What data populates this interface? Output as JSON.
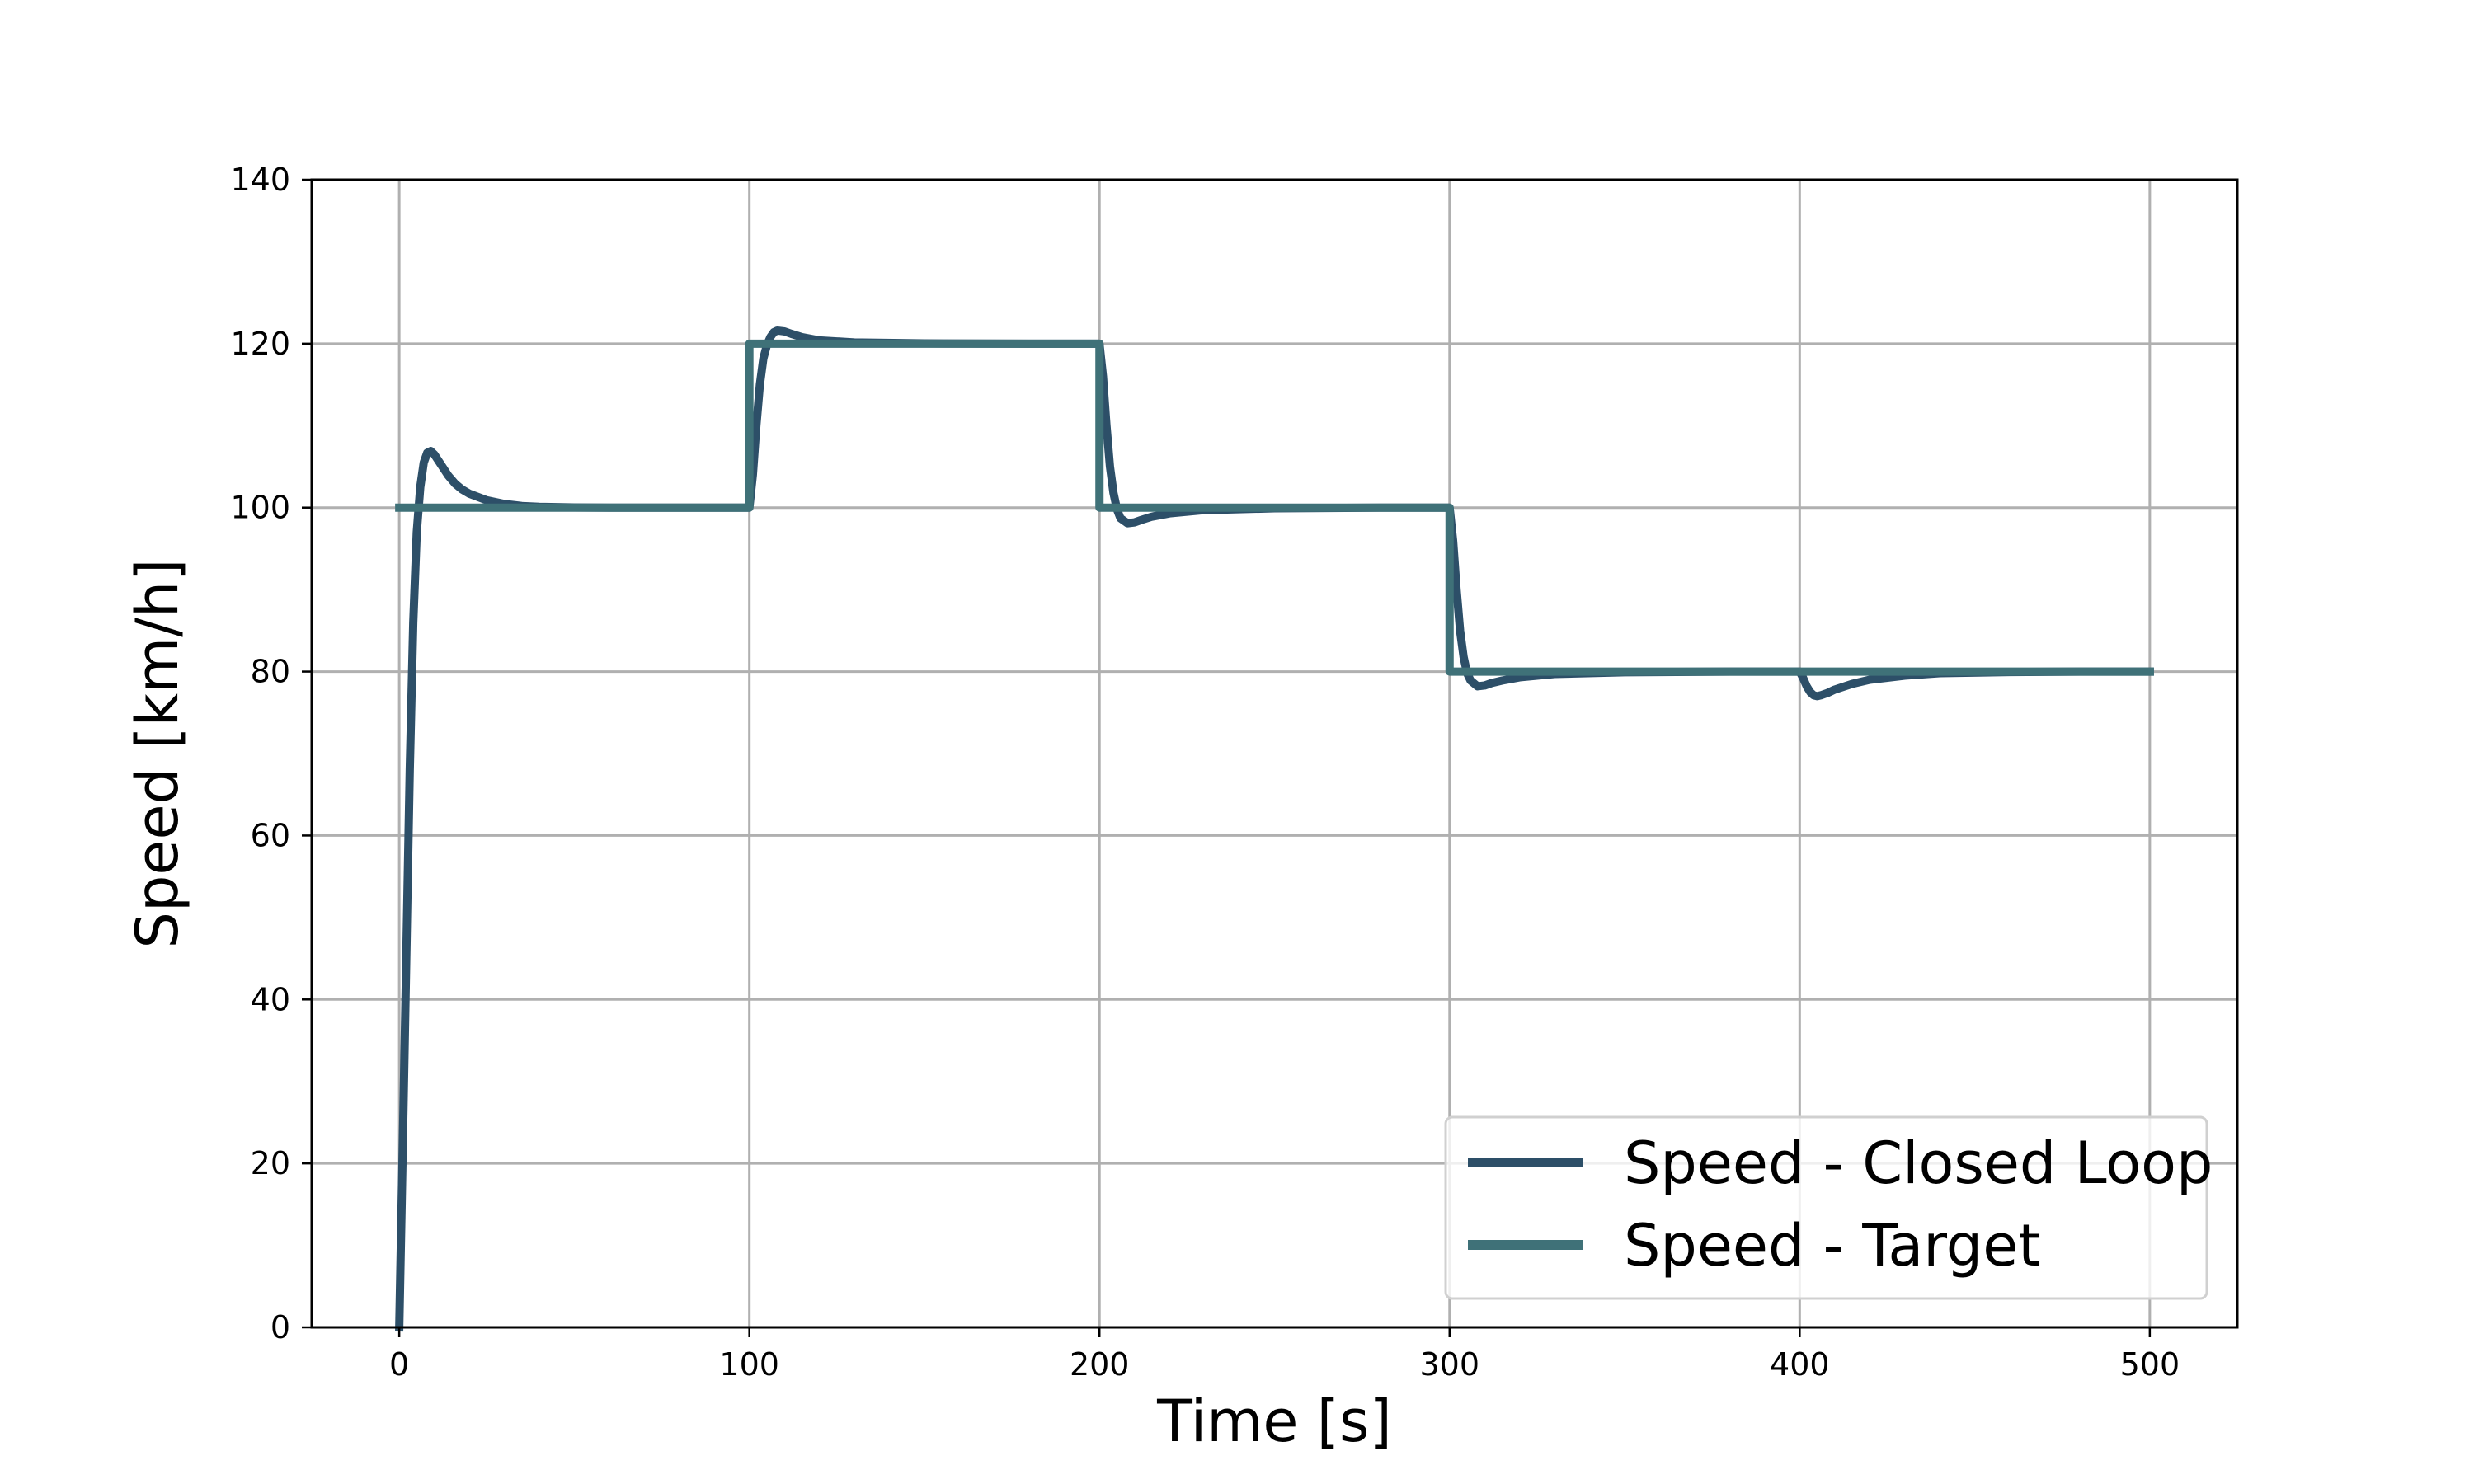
{
  "chart_data": {
    "type": "line",
    "title": "",
    "xlabel": "Time [s]",
    "ylabel": "Speed [km/h]",
    "xlim": [
      -25,
      525
    ],
    "ylim": [
      0,
      140
    ],
    "xticks": [
      0,
      100,
      200,
      300,
      400,
      500
    ],
    "yticks": [
      0,
      20,
      40,
      60,
      80,
      100,
      120,
      140
    ],
    "xtick_labels": [
      "0",
      "100",
      "200",
      "300",
      "400",
      "500"
    ],
    "ytick_labels": [
      "0",
      "20",
      "40",
      "60",
      "80",
      "100",
      "120",
      "140"
    ],
    "grid": true,
    "legend_position": "lower-right",
    "series": [
      {
        "name": "Speed - Closed Loop",
        "color": "#2d4f68",
        "x": [
          0,
          1,
          2,
          3,
          4,
          5,
          6,
          7,
          8,
          9,
          10,
          12,
          14,
          16,
          18,
          20,
          25,
          30,
          35,
          40,
          50,
          60,
          80,
          100,
          101,
          102,
          103,
          104,
          105,
          106,
          107,
          108,
          110,
          112,
          115,
          120,
          130,
          150,
          180,
          200,
          201,
          202,
          203,
          204,
          205,
          206,
          208,
          210,
          212,
          215,
          220,
          230,
          250,
          280,
          300,
          301,
          302,
          303,
          304,
          305,
          306,
          308,
          310,
          312,
          315,
          320,
          330,
          350,
          380,
          400,
          401,
          402,
          403,
          404,
          405,
          406,
          408,
          410,
          415,
          420,
          430,
          440,
          460,
          480,
          500
        ],
        "y": [
          0,
          22,
          45,
          68,
          86,
          97,
          102.5,
          105.5,
          106.7,
          106.9,
          106.5,
          105.2,
          103.9,
          102.9,
          102.2,
          101.7,
          100.9,
          100.45,
          100.2,
          100.1,
          100.02,
          100,
          100,
          100,
          104,
          110,
          115,
          118.2,
          119.8,
          120.8,
          121.4,
          121.6,
          121.5,
          121.2,
          120.8,
          120.4,
          120.15,
          120.03,
          120,
          120,
          116,
          110,
          105,
          101.8,
          99.8,
          98.7,
          98.1,
          98.2,
          98.5,
          98.9,
          99.3,
          99.7,
          99.92,
          100,
          100,
          96,
          90,
          85,
          81.8,
          79.8,
          78.9,
          78.2,
          78.3,
          78.6,
          78.9,
          79.3,
          79.7,
          79.92,
          80,
          80,
          79.2,
          78.2,
          77.5,
          77.1,
          77.0,
          77.1,
          77.4,
          77.8,
          78.5,
          79.0,
          79.5,
          79.8,
          79.95,
          80,
          80
        ]
      },
      {
        "name": "Speed - Target",
        "color": "#3f7178",
        "x": [
          0,
          100,
          100,
          200,
          200,
          300,
          300,
          400,
          400,
          500
        ],
        "y": [
          100,
          100,
          120,
          120,
          100,
          100,
          80,
          80,
          80,
          80
        ]
      }
    ]
  }
}
